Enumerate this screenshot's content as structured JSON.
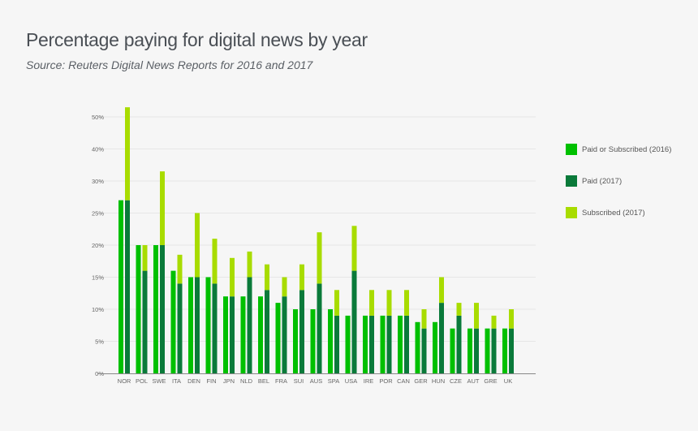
{
  "chart_data": {
    "type": "bar",
    "title": "Percentage paying for digital news by year",
    "subtitle": "Source: Reuters Digital News Reports for 2016 and 2017",
    "yticks": [
      0,
      5,
      10,
      15,
      20,
      25,
      30,
      40,
      50
    ],
    "ytick_labels": [
      "0%",
      "5%",
      "10%",
      "15%",
      "20%",
      "25%",
      "30%",
      "40%",
      "50%"
    ],
    "grid": true,
    "legend_position": "right",
    "categories": [
      "NOR",
      "POL",
      "SWE",
      "ITA",
      "DEN",
      "FIN",
      "JPN",
      "NLD",
      "BEL",
      "FRA",
      "SUI",
      "AUS",
      "SPA",
      "USA",
      "IRE",
      "POR",
      "CAN",
      "GER",
      "HUN",
      "CZE",
      "AUT",
      "GRE",
      "UK"
    ],
    "series": [
      {
        "name": "Paid or Subscribed (2016)",
        "color": "#00c000",
        "values": [
          27,
          20,
          20,
          16,
          15,
          15,
          12,
          12,
          12,
          11,
          10,
          10,
          10,
          9,
          9,
          9,
          9,
          8,
          8,
          7,
          7,
          7,
          7
        ]
      },
      {
        "name": "Paid (2017)",
        "color": "#0a7a3a",
        "values": [
          27,
          16,
          20,
          14,
          15,
          14,
          12,
          15,
          13,
          12,
          13,
          14,
          9,
          16,
          9,
          9,
          9,
          7,
          11,
          9,
          7,
          7,
          7
        ]
      },
      {
        "name": "Subscribed (2017)",
        "color": "#a8dc00",
        "values": [
          26,
          4,
          13,
          4.5,
          10,
          7,
          6,
          4,
          4,
          3,
          4,
          8,
          4,
          7,
          4,
          4,
          4,
          3,
          4,
          2,
          4,
          2,
          3
        ]
      }
    ]
  }
}
